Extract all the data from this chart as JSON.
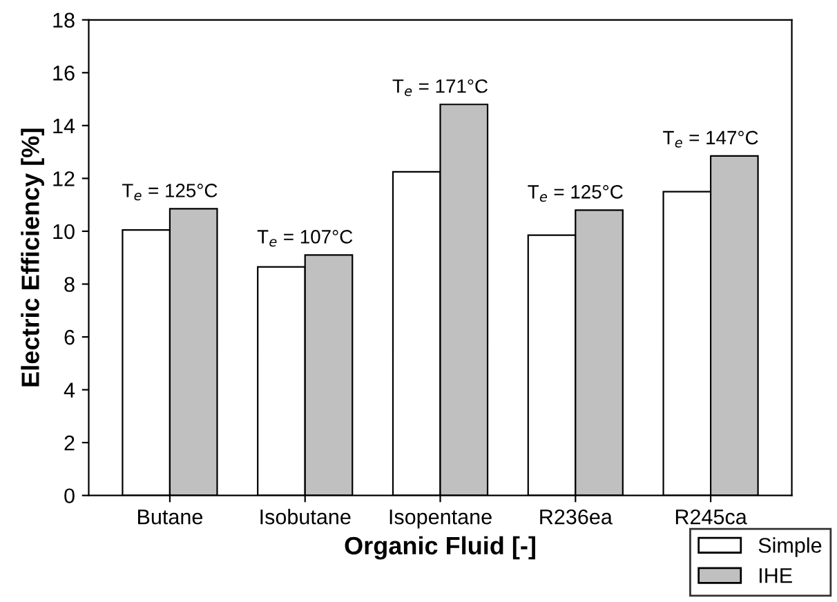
{
  "chart_data": {
    "type": "bar",
    "xlabel": "Organic Fluid [-]",
    "ylabel": "Electric Efficiency [%]",
    "categories": [
      "Butane",
      "Isobutane",
      "Isopentane",
      "R236ea",
      "R245ca"
    ],
    "series": [
      {
        "name": "Simple",
        "color": "#ffffff",
        "values": [
          10.05,
          8.65,
          12.25,
          9.85,
          11.5
        ]
      },
      {
        "name": "IHE",
        "color": "#c0c0c0",
        "values": [
          10.85,
          9.1,
          14.8,
          10.8,
          12.85
        ]
      }
    ],
    "annotations": [
      {
        "text": "T$_{e}$ = 125°C",
        "x": "Butane",
        "y": 10.85
      },
      {
        "text": "T$_{e}$ = 107°C",
        "x": "Isobutane",
        "y": 9.1
      },
      {
        "text": "T$_{e}$ = 171°C",
        "x": "Isopentane",
        "y": 14.8
      },
      {
        "text": "T$_{e}$ = 125°C",
        "x": "R236ea",
        "y": 10.8
      },
      {
        "text": "T$_{e}$ = 147°C",
        "x": "R245ca",
        "y": 12.85
      }
    ],
    "ylim": [
      0,
      18
    ],
    "yticks": [
      0,
      2,
      4,
      6,
      8,
      10,
      12,
      14,
      16,
      18
    ],
    "grid": false,
    "legend": "bottom right"
  }
}
